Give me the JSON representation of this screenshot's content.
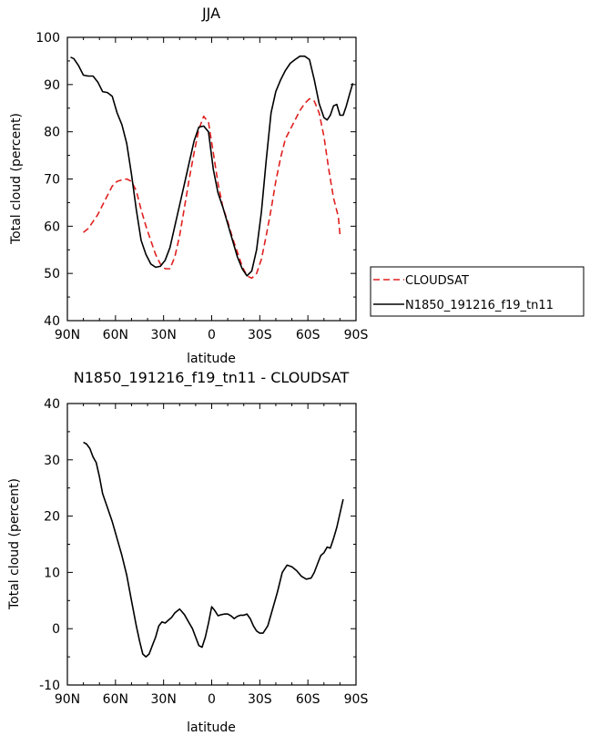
{
  "chart_data": [
    {
      "type": "line",
      "title": "JJA",
      "xlabel": "latitude",
      "ylabel": "Total cloud (percent)",
      "xlim": [
        90,
        -90
      ],
      "ylim": [
        40,
        100
      ],
      "x_ticks": [
        90,
        60,
        30,
        0,
        -30,
        -60,
        -90
      ],
      "x_tick_labels": [
        "90N",
        "60N",
        "30N",
        "0",
        "30S",
        "60S",
        "90S"
      ],
      "y_ticks": [
        40,
        50,
        60,
        70,
        80,
        90,
        100
      ],
      "y_tick_labels": [
        "40",
        "50",
        "60",
        "70",
        "80",
        "90",
        "100"
      ],
      "legend": {
        "placement": "right",
        "entries": [
          "CLOUDSAT",
          "N1850_191216_f19_tn11"
        ]
      },
      "series": [
        {
          "name": "CLOUDSAT",
          "color": "#e02020",
          "dash": "dashed",
          "x": [
            80,
            77,
            74,
            71,
            68,
            65,
            62,
            59,
            56,
            53,
            50,
            47,
            44,
            41,
            38,
            35,
            32,
            29,
            26,
            23,
            20,
            17,
            14,
            11,
            8,
            5,
            2,
            -1,
            -4,
            -7,
            -10,
            -13,
            -16,
            -19,
            -22,
            -25,
            -28,
            -31,
            -34,
            -37,
            -40,
            -43,
            -46,
            -49,
            -52,
            -55,
            -58,
            -61,
            -64,
            -67,
            -70,
            -73,
            -76,
            -79,
            -80
          ],
          "values": [
            58.7,
            59.5,
            61,
            62.5,
            64.5,
            66.5,
            68.5,
            69.5,
            69.8,
            70,
            69.5,
            67.5,
            63.5,
            60,
            57,
            54,
            52,
            51,
            51,
            53.5,
            58,
            64,
            70,
            75.5,
            80.5,
            83.3,
            82,
            75.5,
            69,
            64,
            61,
            57.5,
            54.5,
            51.5,
            49.5,
            49,
            50,
            53,
            58,
            63.5,
            69.5,
            74.5,
            78.5,
            80.5,
            82.5,
            84.5,
            86,
            87,
            86.5,
            84,
            79,
            72,
            66,
            62,
            58.2
          ]
        },
        {
          "name": "N1850_191216_f19_tn11",
          "color": "#000000",
          "dash": "solid",
          "x": [
            88,
            86,
            83,
            80,
            77,
            74,
            71,
            68,
            65,
            62,
            59,
            56,
            53,
            50,
            47,
            44,
            41,
            38,
            35,
            32,
            29,
            26,
            23,
            20,
            17,
            14,
            11,
            8,
            5,
            2,
            -1,
            -4,
            -7,
            -10,
            -13,
            -16,
            -19,
            -22,
            -25,
            -28,
            -31,
            -34,
            -37,
            -40,
            -43,
            -46,
            -49,
            -52,
            -55,
            -58,
            -61,
            -64,
            -67,
            -70,
            -72,
            -74,
            -76,
            -78,
            -80,
            -82,
            -84,
            -86,
            -88
          ],
          "values": [
            95.8,
            95.5,
            94,
            92,
            91.8,
            91.8,
            90.5,
            88.5,
            88.3,
            87.5,
            84,
            81.5,
            77.5,
            71,
            63.5,
            57,
            54,
            52,
            51.3,
            51.5,
            52.8,
            55.5,
            60,
            64.5,
            69,
            73.5,
            78,
            81,
            81.2,
            80,
            72,
            67,
            64,
            60.5,
            57,
            53.5,
            51,
            49.5,
            50.5,
            55,
            63,
            74,
            84,
            88.5,
            91,
            93,
            94.5,
            95.3,
            96,
            96,
            95.3,
            91,
            86,
            83,
            82.5,
            83.5,
            85.5,
            85.8,
            83.5,
            83.5,
            85.5,
            88,
            90.3
          ]
        }
      ]
    },
    {
      "type": "line",
      "title": "N1850_191216_f19_tn11 - CLOUDSAT",
      "xlabel": "latitude",
      "ylabel": "Total cloud (percent)",
      "xlim": [
        90,
        -90
      ],
      "ylim": [
        -10,
        40
      ],
      "x_ticks": [
        90,
        60,
        30,
        0,
        -30,
        -60,
        -90
      ],
      "x_tick_labels": [
        "90N",
        "60N",
        "30N",
        "0",
        "30S",
        "60S",
        "90S"
      ],
      "y_ticks": [
        -10,
        0,
        10,
        20,
        30,
        40
      ],
      "y_tick_labels": [
        "-10",
        "0",
        "10",
        "20",
        "30",
        "40"
      ],
      "series": [
        {
          "color": "#000000",
          "dash": "solid",
          "x": [
            80,
            78,
            76,
            74,
            72,
            70,
            68,
            65,
            62,
            59,
            56,
            53,
            50,
            47,
            45,
            43,
            41,
            39,
            37,
            35,
            33,
            31,
            29,
            27,
            25,
            23,
            20,
            17,
            14,
            12,
            10,
            8,
            6,
            4,
            2,
            0,
            -2,
            -4,
            -6,
            -8,
            -10,
            -12,
            -14,
            -16,
            -18,
            -20,
            -22,
            -24,
            -26,
            -28,
            -30,
            -32,
            -35,
            -38,
            -41,
            -44,
            -47,
            -50,
            -53,
            -56,
            -59,
            -62,
            -64,
            -66,
            -68,
            -70,
            -72,
            -74,
            -76,
            -78,
            -80,
            -82
          ],
          "values": [
            33.1,
            32.8,
            32,
            30.5,
            29.5,
            27,
            24,
            21.5,
            19,
            16,
            13,
            9.5,
            5,
            0.5,
            -2.2,
            -4.5,
            -5,
            -4.5,
            -3,
            -1.5,
            0.5,
            1.2,
            1,
            1.5,
            2,
            2.8,
            3.5,
            2.5,
            1,
            0,
            -1.5,
            -3,
            -3.3,
            -1.5,
            1,
            3.9,
            3.2,
            2.3,
            2.5,
            2.6,
            2.6,
            2.3,
            1.8,
            2.2,
            2.4,
            2.4,
            2.6,
            1.8,
            0.5,
            -0.4,
            -0.8,
            -0.8,
            0.5,
            3.5,
            6.5,
            10,
            11.3,
            11,
            10.3,
            9.3,
            8.8,
            9,
            10,
            11.5,
            13,
            13.5,
            14.5,
            14.3,
            16,
            18,
            20.5,
            23
          ]
        }
      ]
    }
  ]
}
